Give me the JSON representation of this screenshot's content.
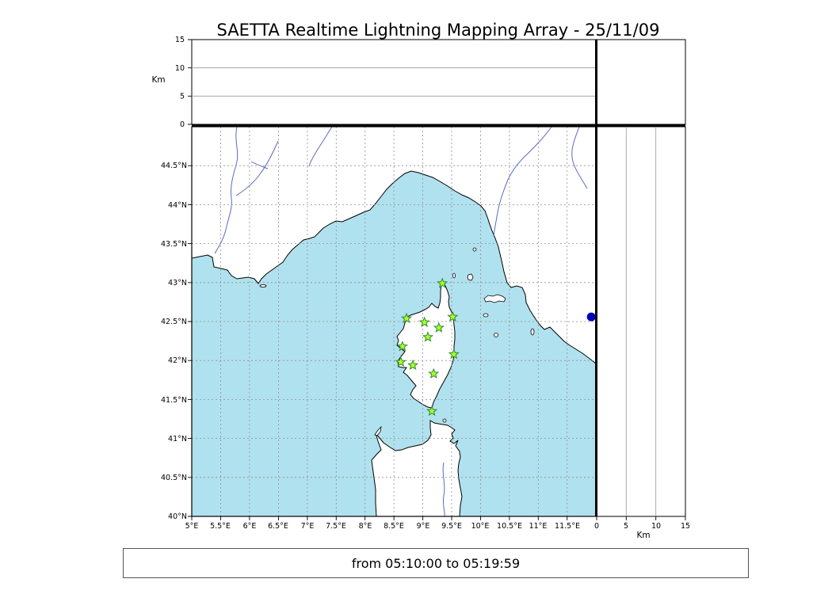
{
  "title": "SAETTA Realtime Lightning Mapping Array - 25/11/09",
  "footer": {
    "text": "from 05:10:00 to 05:19:59"
  },
  "alt_axis": {
    "unit": "Km",
    "ticks": [
      "0",
      "5",
      "10",
      "15"
    ]
  },
  "right_axis": {
    "unit": "Km",
    "ticks": [
      "0",
      "5",
      "10",
      "15"
    ]
  },
  "map": {
    "lat_labels": [
      "44.5°N",
      "44°N",
      "43.5°N",
      "43°N",
      "42.5°N",
      "42°N",
      "41.5°N",
      "41°N",
      "40.5°N",
      "40°N"
    ],
    "lon_labels": [
      "5°E",
      "5.5°E",
      "6°E",
      "6.5°E",
      "7°E",
      "7.5°E",
      "8°E",
      "8.5°E",
      "9°E",
      "9.5°E",
      "10°E",
      "10.5°E",
      "11°E",
      "11.5°E"
    ],
    "extent": {
      "lon_min": 5,
      "lon_max": 12,
      "lat_min": 40,
      "lat_max": 45
    }
  },
  "stations": [
    {
      "lon": 9.34,
      "lat": 42.99
    },
    {
      "lon": 9.52,
      "lat": 42.56
    },
    {
      "lon": 8.72,
      "lat": 42.54
    },
    {
      "lon": 9.03,
      "lat": 42.49
    },
    {
      "lon": 9.28,
      "lat": 42.42
    },
    {
      "lon": 9.09,
      "lat": 42.3
    },
    {
      "lon": 8.65,
      "lat": 42.18
    },
    {
      "lon": 9.54,
      "lat": 42.08
    },
    {
      "lon": 8.62,
      "lat": 41.98
    },
    {
      "lon": 8.83,
      "lat": 41.94
    },
    {
      "lon": 9.19,
      "lat": 41.83
    },
    {
      "lon": 9.16,
      "lat": 41.35
    }
  ],
  "event_dot": {
    "lon": 11.92,
    "lat": 42.56
  },
  "colors": {
    "sea": "#b0e1ee",
    "land": "#ffffff",
    "river": "#5c6bc0",
    "grid": "#909090",
    "station_fill": "#adff2f",
    "station_stroke": "#2e8b2e",
    "event": "#0000bb"
  }
}
